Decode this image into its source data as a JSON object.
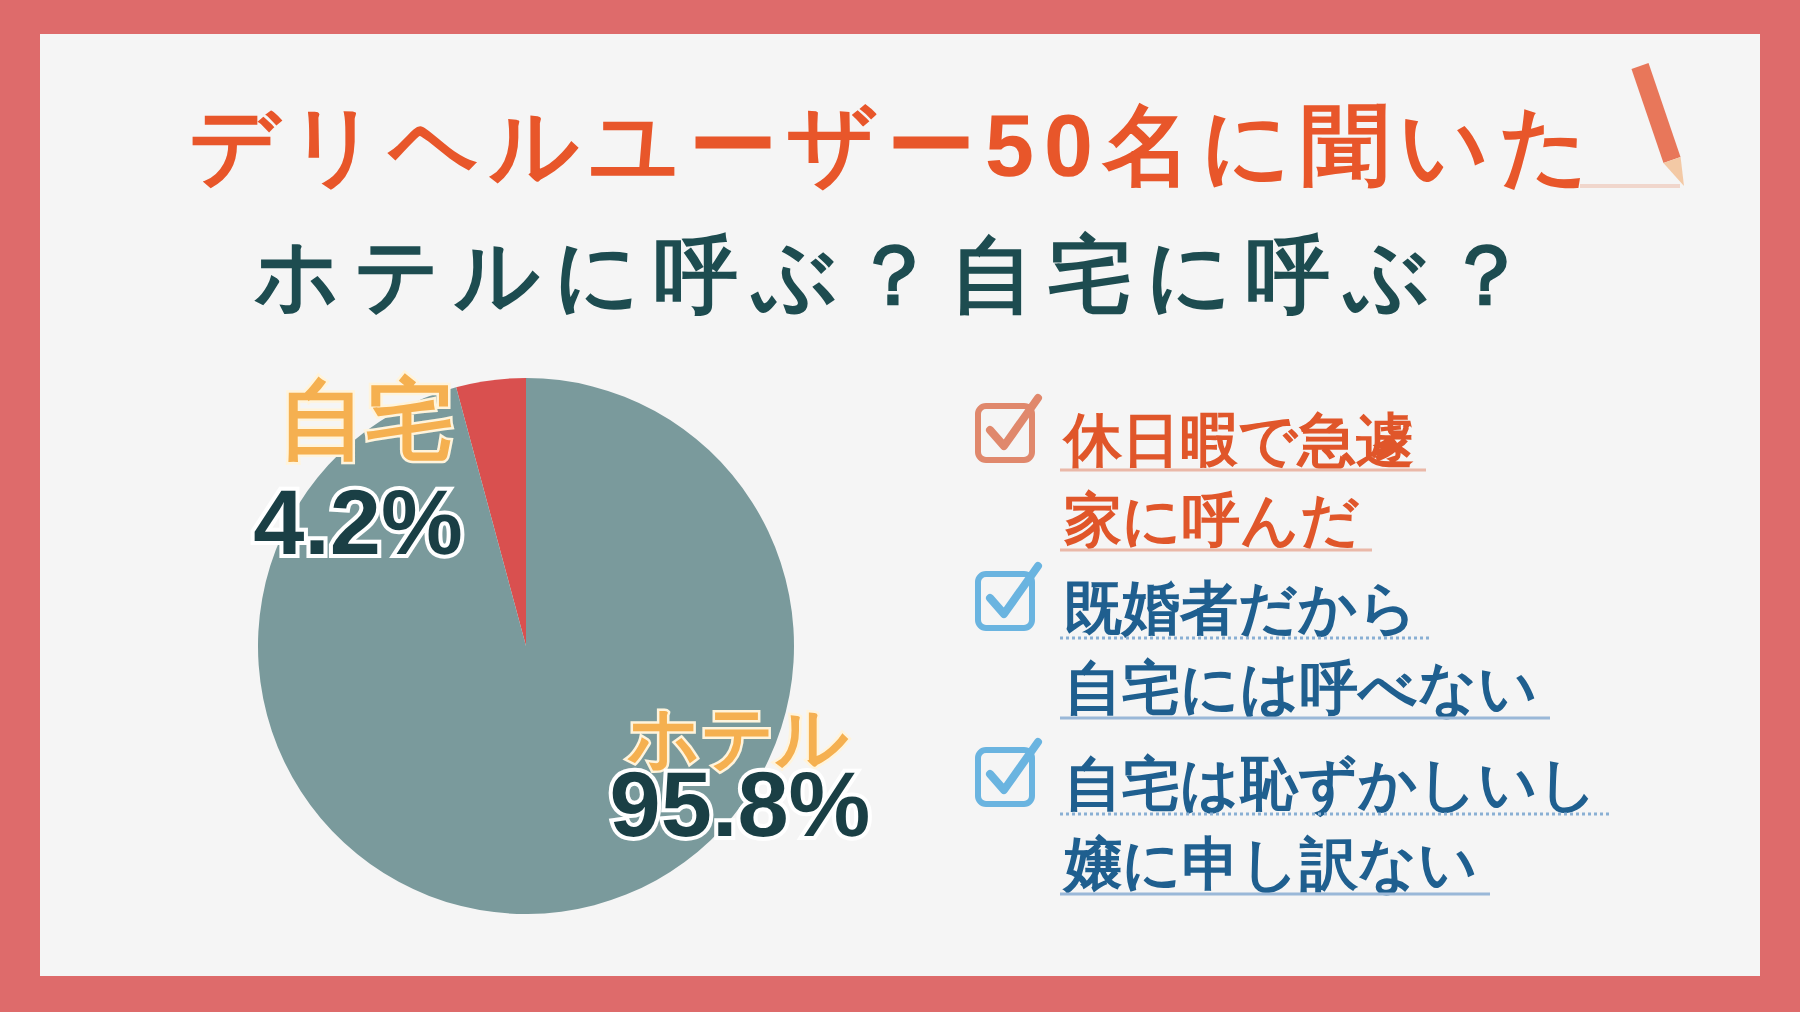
{
  "chart_data": {
    "type": "pie",
    "title": "デリヘルユーザー50名に聞いた",
    "subtitle": "ホテルに呼ぶ？自宅に呼ぶ？",
    "categories": [
      "自宅",
      "ホテル"
    ],
    "values": [
      4.2,
      95.8
    ],
    "colors": [
      "#d9504f",
      "#7a9a9c"
    ],
    "value_labels": [
      "4.2%",
      "95.8%"
    ],
    "annotations": [
      "休日暇で急遽家に呼んだ",
      "既婚者だから自宅には呼べない",
      "自宅は恥ずかしいし嬢に申し訳ない"
    ]
  }
}
